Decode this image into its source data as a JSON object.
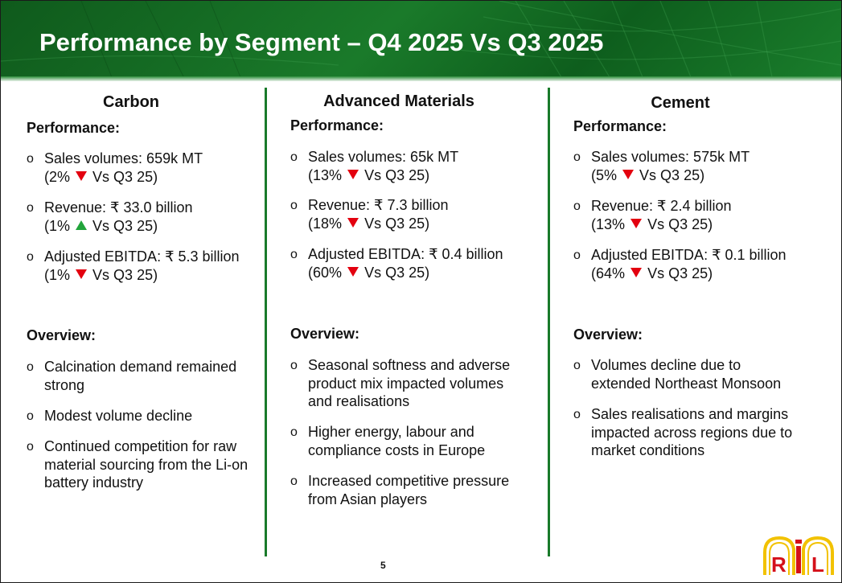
{
  "title": "Performance by Segment – Q4 2025 Vs Q3 2025",
  "colors": {
    "header_green": "#1a7a2a",
    "divider_green": "#197a2a",
    "down": "#e3000f",
    "up": "#21a43b"
  },
  "columns": [
    {
      "name": "Carbon",
      "performance_label": "Performance:",
      "performance": [
        {
          "line1": "Sales volumes: 659k MT",
          "pct": "(2%",
          "dir": "down",
          "vs": "Vs Q3 25)"
        },
        {
          "line1": "Revenue: ₹ 33.0 billion",
          "pct": "(1%",
          "dir": "up",
          "vs": "Vs Q3 25)"
        },
        {
          "line1": "Adjusted EBITDA: ₹ 5.3 billion",
          "pct": "(1%",
          "dir": "down",
          "vs": "Vs Q3 25)"
        }
      ],
      "overview_label": "Overview:",
      "overview": [
        [
          "Calcination demand remained",
          "strong"
        ],
        [
          "Modest volume decline"
        ],
        [
          "Continued competition for raw",
          "material sourcing from the Li-on",
          "battery industry"
        ]
      ]
    },
    {
      "name": "Advanced Materials",
      "performance_label": "Performance:",
      "performance": [
        {
          "line1": "Sales volumes: 65k MT",
          "pct": "(13%",
          "dir": "down",
          "vs": "Vs Q3 25)"
        },
        {
          "line1": "Revenue: ₹ 7.3 billion",
          "pct": "(18%",
          "dir": "down",
          "vs": "Vs Q3 25)"
        },
        {
          "line1": "Adjusted EBITDA: ₹ 0.4 billion",
          "pct": "(60%",
          "dir": "down",
          "vs": "Vs Q3 25)"
        }
      ],
      "overview_label": "Overview:",
      "overview": [
        [
          "Seasonal softness and adverse",
          "product mix impacted volumes",
          "and realisations"
        ],
        [
          "Higher energy, labour and",
          "compliance costs in Europe"
        ],
        [
          "Increased competitive pressure",
          "from Asian players"
        ]
      ]
    },
    {
      "name": "Cement",
      "performance_label": "Performance:",
      "performance": [
        {
          "line1": "Sales volumes: 575k MT",
          "pct": "(5%",
          "dir": "down",
          "vs": "Vs Q3 25)"
        },
        {
          "line1": "Revenue: ₹ 2.4 billion",
          "pct": "(13%",
          "dir": "down",
          "vs": "Vs Q3 25)"
        },
        {
          "line1": "Adjusted EBITDA: ₹ 0.1 billion",
          "pct": "(64%",
          "dir": "down",
          "vs": "Vs Q3 25)"
        }
      ],
      "overview_label": "Overview:",
      "overview": [
        [
          "Volumes decline due to",
          "extended Northeast Monsoon"
        ],
        [
          "Sales realisations and margins",
          "impacted across regions due to",
          "market conditions"
        ]
      ]
    }
  ],
  "bullet_char": "o",
  "page_number": "5",
  "logo_text": "RIL"
}
